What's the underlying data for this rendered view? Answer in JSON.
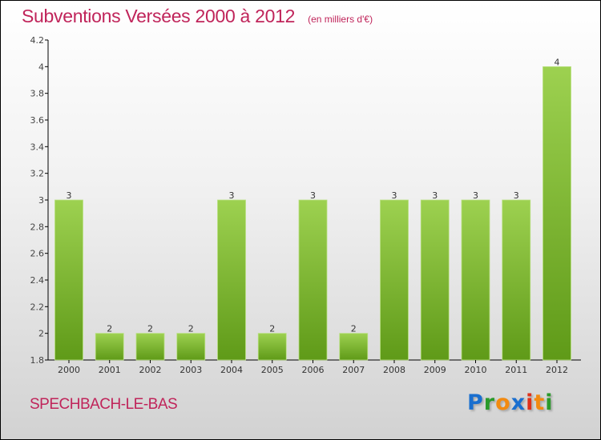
{
  "title": "Subventions Versées 2000 à 2012",
  "subtitle": "(en milliers d'€)",
  "commune": "SPECHBACH-LE-BAS",
  "logo": {
    "letters": [
      "P",
      "r",
      "o",
      "x",
      "i",
      "t",
      "i"
    ],
    "colors": [
      "#1a6fcf",
      "#2a9a2a",
      "#f28a10",
      "#1a6fcf",
      "#e0301a",
      "#f28a10",
      "#2a9a2a"
    ]
  },
  "chart_data": {
    "type": "bar",
    "title": "Subventions Versées 2000 à 2012",
    "ylabel": "(en milliers d'€)",
    "xlabel": "",
    "categories": [
      "2000",
      "2001",
      "2002",
      "2003",
      "2004",
      "2005",
      "2006",
      "2007",
      "2008",
      "2009",
      "2010",
      "2011",
      "2012"
    ],
    "values": [
      3,
      2,
      2,
      2,
      3,
      2,
      3,
      2,
      3,
      3,
      3,
      3,
      4
    ],
    "ylim": [
      1.8,
      4.2
    ],
    "yticks": [
      "1.8",
      "2",
      "2.2",
      "2.4",
      "2.6",
      "2.8",
      "3",
      "3.2",
      "3.4",
      "3.6",
      "3.8",
      "4",
      "4.2"
    ],
    "grid": false,
    "bar_color": "#7ab62e"
  }
}
